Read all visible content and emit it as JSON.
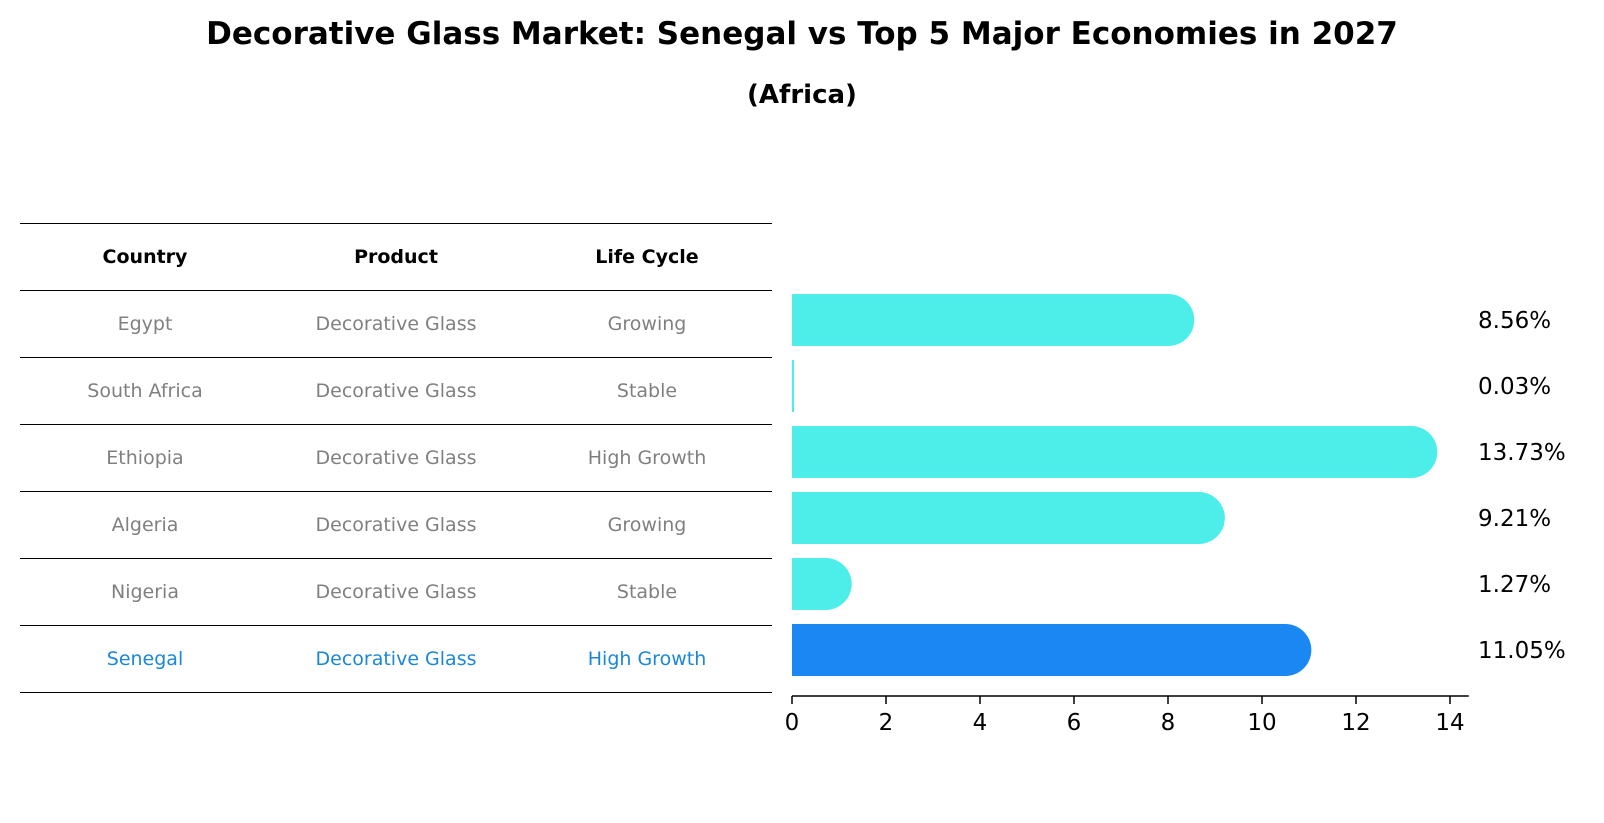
{
  "title": "Decorative Glass Market: Senegal vs Top 5 Major Economies in 2027",
  "subtitle": "(Africa)",
  "table": {
    "headers": [
      "Country",
      "Product",
      "Life Cycle"
    ],
    "rows": [
      {
        "country": "Egypt",
        "product": "Decorative Glass",
        "life_cycle": "Growing"
      },
      {
        "country": "South Africa",
        "product": "Decorative Glass",
        "life_cycle": "Stable"
      },
      {
        "country": "Ethiopia",
        "product": "Decorative Glass",
        "life_cycle": "High Growth"
      },
      {
        "country": "Algeria",
        "product": "Decorative Glass",
        "life_cycle": "Growing"
      },
      {
        "country": "Nigeria",
        "product": "Decorative Glass",
        "life_cycle": "Stable"
      },
      {
        "country": "Senegal",
        "product": "Decorative Glass",
        "life_cycle": "High Growth"
      }
    ]
  },
  "colors": {
    "bar": "#4deeea",
    "highlight_bar": "#1a87f2",
    "highlight_text": "#1a87d8",
    "muted_text": "#808080"
  },
  "chart_data": {
    "type": "bar",
    "orientation": "horizontal",
    "title": "Decorative Glass Market: Senegal vs Top 5 Major Economies in 2027",
    "subtitle": "(Africa)",
    "categories": [
      "Egypt",
      "South Africa",
      "Ethiopia",
      "Algeria",
      "Nigeria",
      "Senegal"
    ],
    "values": [
      8.56,
      0.03,
      13.73,
      9.21,
      1.27,
      11.05
    ],
    "value_labels": [
      "8.56%",
      "0.03%",
      "13.73%",
      "9.21%",
      "1.27%",
      "11.05%"
    ],
    "highlight": "Senegal",
    "xlim": [
      0,
      14.4
    ],
    "xticks": [
      0,
      2,
      4,
      6,
      8,
      10,
      12,
      14
    ],
    "xlabel": "",
    "ylabel": ""
  }
}
